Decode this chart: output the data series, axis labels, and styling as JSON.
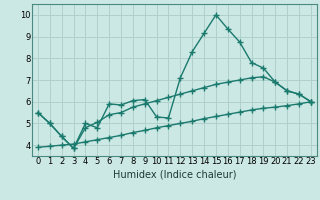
{
  "title": "",
  "xlabel": "Humidex (Indice chaleur)",
  "xlim": [
    -0.5,
    23.5
  ],
  "ylim": [
    3.5,
    10.5
  ],
  "xticks": [
    0,
    1,
    2,
    3,
    4,
    5,
    6,
    7,
    8,
    9,
    10,
    11,
    12,
    13,
    14,
    15,
    16,
    17,
    18,
    19,
    20,
    21,
    22,
    23
  ],
  "yticks": [
    4,
    5,
    6,
    7,
    8,
    9,
    10
  ],
  "bg_color": "#cce8e4",
  "grid_color": "#b0d0cc",
  "line_color": "#1a7a6e",
  "line_width": 1.0,
  "marker": "+",
  "marker_size": 4,
  "marker_edge_width": 1.0,
  "series": [
    [
      5.5,
      5.0,
      4.4,
      3.85,
      5.0,
      4.8,
      5.9,
      5.85,
      6.05,
      6.1,
      5.3,
      5.25,
      7.1,
      8.3,
      9.15,
      10.0,
      9.35,
      8.75,
      7.8,
      7.55,
      6.9,
      6.5,
      6.35,
      6.0
    ],
    [
      5.5,
      5.0,
      4.4,
      3.85,
      4.8,
      5.05,
      5.4,
      5.5,
      5.75,
      5.9,
      6.05,
      6.2,
      6.35,
      6.5,
      6.65,
      6.8,
      6.9,
      7.0,
      7.1,
      7.15,
      6.9,
      6.5,
      6.35,
      6.0
    ],
    [
      3.9,
      3.95,
      4.0,
      4.05,
      4.15,
      4.25,
      4.35,
      4.45,
      4.58,
      4.68,
      4.8,
      4.9,
      5.0,
      5.1,
      5.22,
      5.32,
      5.42,
      5.52,
      5.62,
      5.7,
      5.75,
      5.82,
      5.9,
      6.0
    ]
  ],
  "tick_fontsize": 6,
  "xlabel_fontsize": 7
}
